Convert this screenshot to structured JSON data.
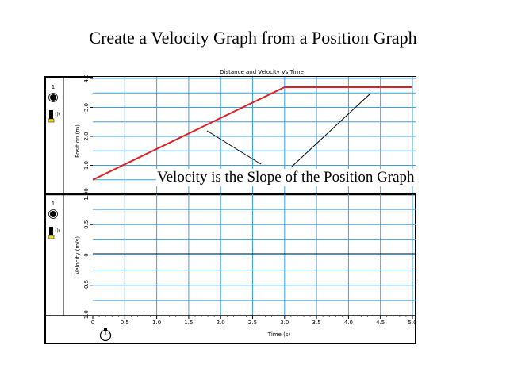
{
  "slide": {
    "title": "Create a Velocity Graph from a Position Graph",
    "annotation": "Velocity is the Slope of the Position Graph"
  },
  "panels": {
    "top_number": "1",
    "bottom_number": "1"
  },
  "chart_data": [
    {
      "type": "line",
      "title": "Distance and Velocity Vs Time",
      "xlabel": "Time (s)",
      "ylabel": "Position (m)",
      "xlim": [
        0,
        5
      ],
      "ylim": [
        0,
        4
      ],
      "x_ticks": [
        "0",
        "0.5",
        "1.0",
        "1.5",
        "2.0",
        "2.5",
        "3.0",
        "3.5",
        "4.0",
        "4.5",
        "5.0"
      ],
      "y_ticks": [
        "1.0",
        "2.0",
        "3.0",
        "4.0"
      ],
      "grid": true,
      "series": [
        {
          "x": [
            0,
            3.0,
            5.0
          ],
          "y": [
            0.5,
            3.7,
            3.7
          ],
          "color": "#e02020"
        }
      ]
    },
    {
      "type": "line",
      "title": "",
      "xlabel": "Time (s)",
      "ylabel": "Velocity (m/s)",
      "xlim": [
        0,
        5
      ],
      "ylim": [
        -1.0,
        1.0
      ],
      "y_ticks": [
        "-1.0",
        "-0.5",
        "0",
        "0.5",
        "1.00"
      ],
      "grid": true,
      "series": []
    }
  ],
  "colors": {
    "grid": "#3aa0e0",
    "position_line": "#e02020",
    "frame": "#000000"
  }
}
